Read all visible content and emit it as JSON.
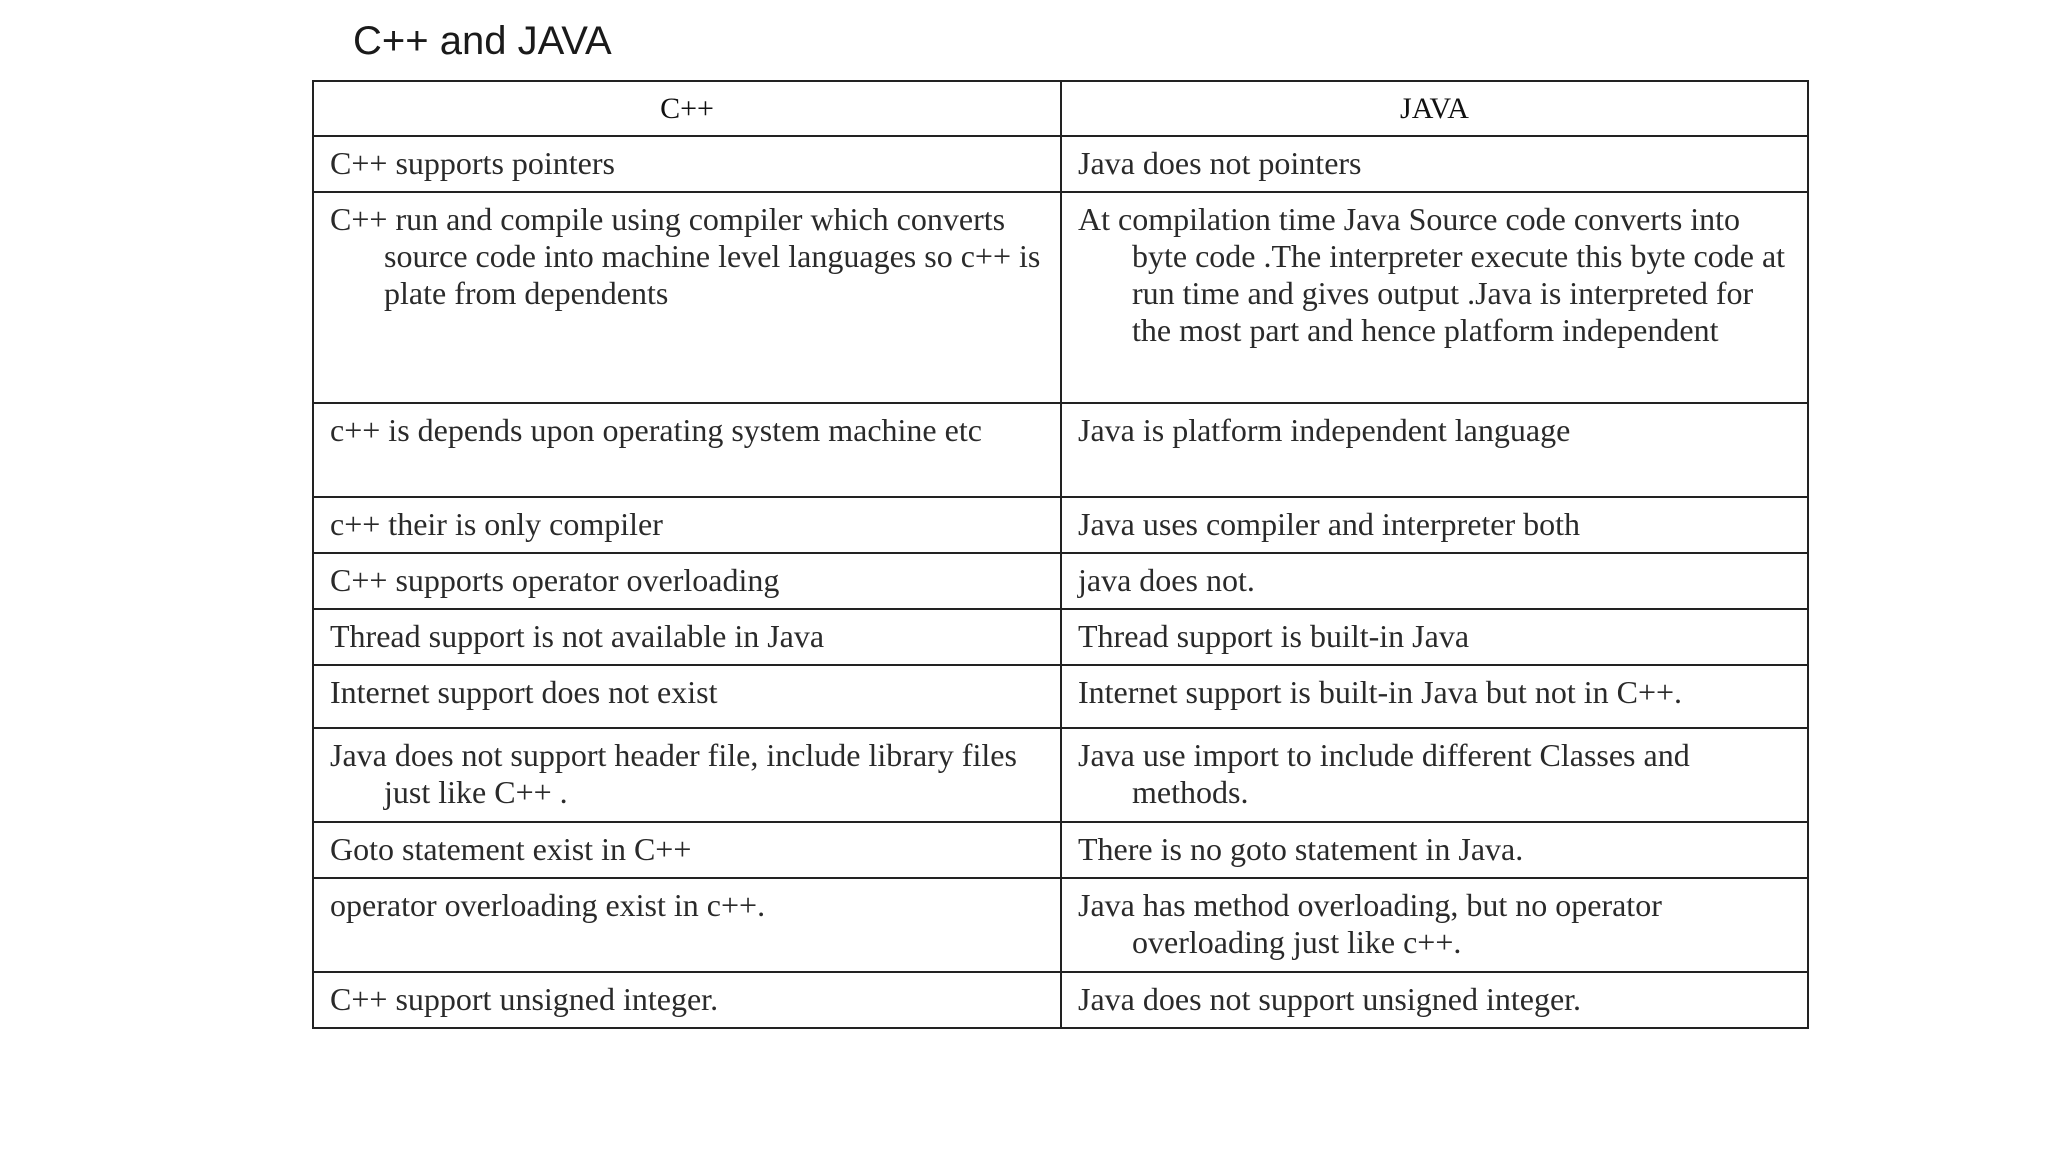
{
  "slide": {
    "title": "C++ and JAVA"
  },
  "table": {
    "headers": [
      "C++",
      "JAVA"
    ],
    "rows": [
      [
        "C++ supports pointers",
        "Java does not pointers"
      ],
      [
        "C++ run and compile using compiler which converts source code into machine level languages so c++ is plate from dependents",
        "At compilation time Java Source code converts into byte code .The interpreter execute this byte code at run time and gives output .Java is interpreted for the most part and hence platform independent"
      ],
      [
        "c++ is depends upon operating system machine etc",
        "Java is platform independent language"
      ],
      [
        "c++ their is only compiler",
        "Java uses compiler and interpreter both"
      ],
      [
        "C++ supports operator overloading",
        "java does not."
      ],
      [
        "Thread support is not available in Java",
        "Thread support is built-in Java"
      ],
      [
        "Internet support does not exist",
        "Internet support is built-in Java but not in C++."
      ],
      [
        "Java does not support header file, include library files just like C++ .",
        "Java use import to include different Classes and methods."
      ],
      [
        "Goto statement exist in C++",
        "There is no goto statement in Java."
      ],
      [
        "operator overloading exist in  c++.",
        "Java has method overloading, but no operator overloading just like c++."
      ],
      [
        "C++ support unsigned integer.",
        "Java does not support unsigned integer."
      ]
    ]
  }
}
